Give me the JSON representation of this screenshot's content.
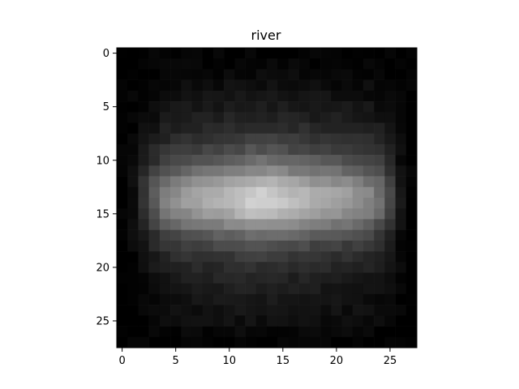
{
  "chart_data": {
    "type": "heatmap",
    "title": "river",
    "xlabel": "",
    "ylabel": "",
    "colormap": "gray",
    "rows": 28,
    "cols": 28,
    "x_ticks": [
      0,
      5,
      10,
      15,
      20,
      25
    ],
    "y_ticks": [
      0,
      5,
      10,
      15,
      20,
      25
    ],
    "xlim": [
      -0.5,
      27.5
    ],
    "ylim": [
      27.5,
      -0.5
    ],
    "y_axis_inverted": true,
    "grid": false,
    "value_range": [
      0,
      255
    ],
    "profile": {
      "description_of_shape": "bright horizontal band centered on row 13.5, spanning columns ~2-25, peak near column 12",
      "row_center": 13.5,
      "row_profile": [
        4,
        6,
        10,
        16,
        22,
        30,
        40,
        52,
        68,
        88,
        115,
        150,
        190,
        220,
        225,
        200,
        160,
        118,
        88,
        68,
        52,
        42,
        34,
        28,
        22,
        16,
        10,
        4
      ],
      "col_profile": [
        2,
        18,
        60,
        105,
        140,
        162,
        178,
        188,
        196,
        204,
        212,
        222,
        235,
        240,
        232,
        222,
        214,
        206,
        198,
        192,
        186,
        178,
        168,
        152,
        128,
        85,
        30,
        2
      ],
      "texture_seed": 7
    }
  },
  "colors": {
    "background": "#ffffff",
    "axis": "#000000",
    "text": "#000000"
  }
}
